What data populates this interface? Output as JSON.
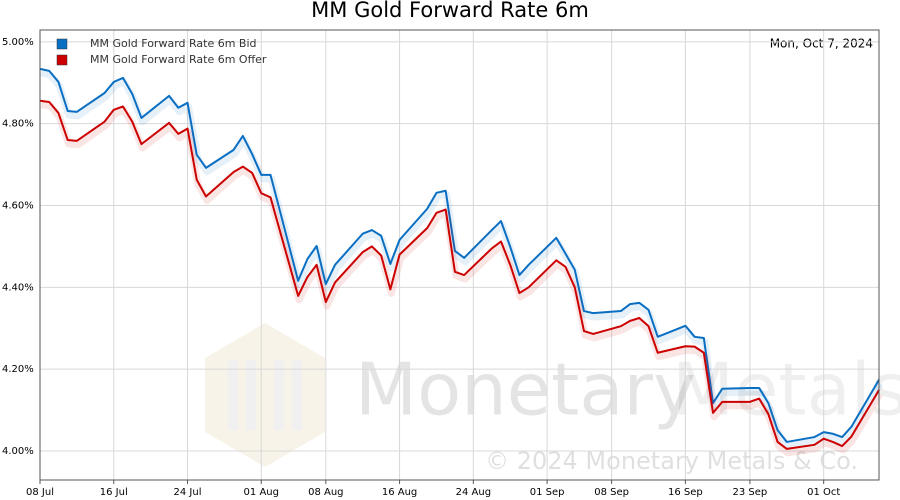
{
  "chart_data": {
    "type": "line",
    "title": "MM Gold Forward Rate 6m",
    "annotation": "Mon, Oct 7, 2024",
    "watermark": [
      "Monetary",
      "Metals",
      "© 2024 Monetary Metals & Co."
    ],
    "x": [
      "08 Jul",
      "09 Jul",
      "10 Jul",
      "11 Jul",
      "12 Jul",
      "15 Jul",
      "16 Jul",
      "17 Jul",
      "18 Jul",
      "19 Jul",
      "22 Jul",
      "23 Jul",
      "24 Jul",
      "25 Jul",
      "26 Jul",
      "29 Jul",
      "30 Jul",
      "31 Jul",
      "01 Aug",
      "02 Aug",
      "05 Aug",
      "06 Aug",
      "07 Aug",
      "08 Aug",
      "09 Aug",
      "12 Aug",
      "13 Aug",
      "14 Aug",
      "15 Aug",
      "16 Aug",
      "19 Aug",
      "20 Aug",
      "21 Aug",
      "22 Aug",
      "23 Aug",
      "26 Aug",
      "27 Aug",
      "28 Aug",
      "29 Aug",
      "30 Aug",
      "02 Sep",
      "03 Sep",
      "04 Sep",
      "05 Sep",
      "06 Sep",
      "09 Sep",
      "10 Sep",
      "11 Sep",
      "12 Sep",
      "13 Sep",
      "16 Sep",
      "17 Sep",
      "18 Sep",
      "19 Sep",
      "20 Sep",
      "23 Sep",
      "24 Sep",
      "25 Sep",
      "26 Sep",
      "27 Sep",
      "30 Sep",
      "01 Oct",
      "02 Oct",
      "03 Oct",
      "04 Oct",
      "07 Oct"
    ],
    "series": [
      {
        "name": "MM Gold Forward Rate 6m Bid",
        "color": "#0a6fc2",
        "values": [
          4.934,
          4.929,
          4.902,
          4.831,
          4.829,
          4.875,
          4.902,
          4.912,
          4.873,
          4.814,
          4.868,
          4.839,
          4.851,
          4.724,
          4.692,
          4.736,
          4.77,
          4.726,
          4.675,
          4.675,
          4.416,
          4.469,
          4.501,
          4.408,
          4.455,
          4.531,
          4.54,
          4.526,
          4.457,
          4.516,
          4.592,
          4.631,
          4.636,
          4.489,
          4.472,
          4.54,
          4.562,
          4.499,
          4.43,
          4.455,
          4.521,
          4.482,
          4.443,
          4.342,
          4.337,
          4.342,
          4.359,
          4.362,
          4.345,
          4.279,
          4.306,
          4.279,
          4.276,
          4.117,
          4.152,
          4.154,
          4.154,
          4.117,
          4.051,
          4.022,
          4.034,
          4.046,
          4.042,
          4.034,
          4.059,
          4.174
        ]
      },
      {
        "name": "MM Gold Forward Rate 6m Offer",
        "color": "#cc0000",
        "values": [
          4.856,
          4.853,
          4.826,
          4.76,
          4.758,
          4.805,
          4.834,
          4.842,
          4.805,
          4.75,
          4.802,
          4.775,
          4.788,
          4.663,
          4.622,
          4.682,
          4.695,
          4.68,
          4.63,
          4.62,
          4.379,
          4.425,
          4.455,
          4.364,
          4.412,
          4.486,
          4.5,
          4.478,
          4.395,
          4.48,
          4.545,
          4.582,
          4.59,
          4.438,
          4.43,
          4.495,
          4.512,
          4.455,
          4.386,
          4.4,
          4.466,
          4.45,
          4.4,
          4.293,
          4.286,
          4.305,
          4.318,
          4.325,
          4.305,
          4.24,
          4.256,
          4.255,
          4.24,
          4.093,
          4.12,
          4.12,
          4.128,
          4.09,
          4.022,
          4.005,
          4.015,
          4.03,
          4.022,
          4.012,
          4.035,
          4.149
        ]
      }
    ],
    "xlim": [
      "08 Jul",
      "07 Oct"
    ],
    "xticks": [
      "08 Jul",
      "16 Jul",
      "24 Jul",
      "01 Aug",
      "08 Aug",
      "16 Aug",
      "24 Aug",
      "01 Sep",
      "08 Sep",
      "16 Sep",
      "23 Sep",
      "01 Oct"
    ],
    "ylim": [
      3.929,
      5.029
    ],
    "yticks": [
      {
        "value": 4.0,
        "label": "4.00%"
      },
      {
        "value": 4.2,
        "label": "4.20%"
      },
      {
        "value": 4.4,
        "label": "4.40%"
      },
      {
        "value": 4.6,
        "label": "4.60%"
      },
      {
        "value": 4.8,
        "label": "4.80%"
      },
      {
        "value": 5.0,
        "label": "5.00%"
      }
    ],
    "grid": true,
    "legend": "top-left"
  }
}
